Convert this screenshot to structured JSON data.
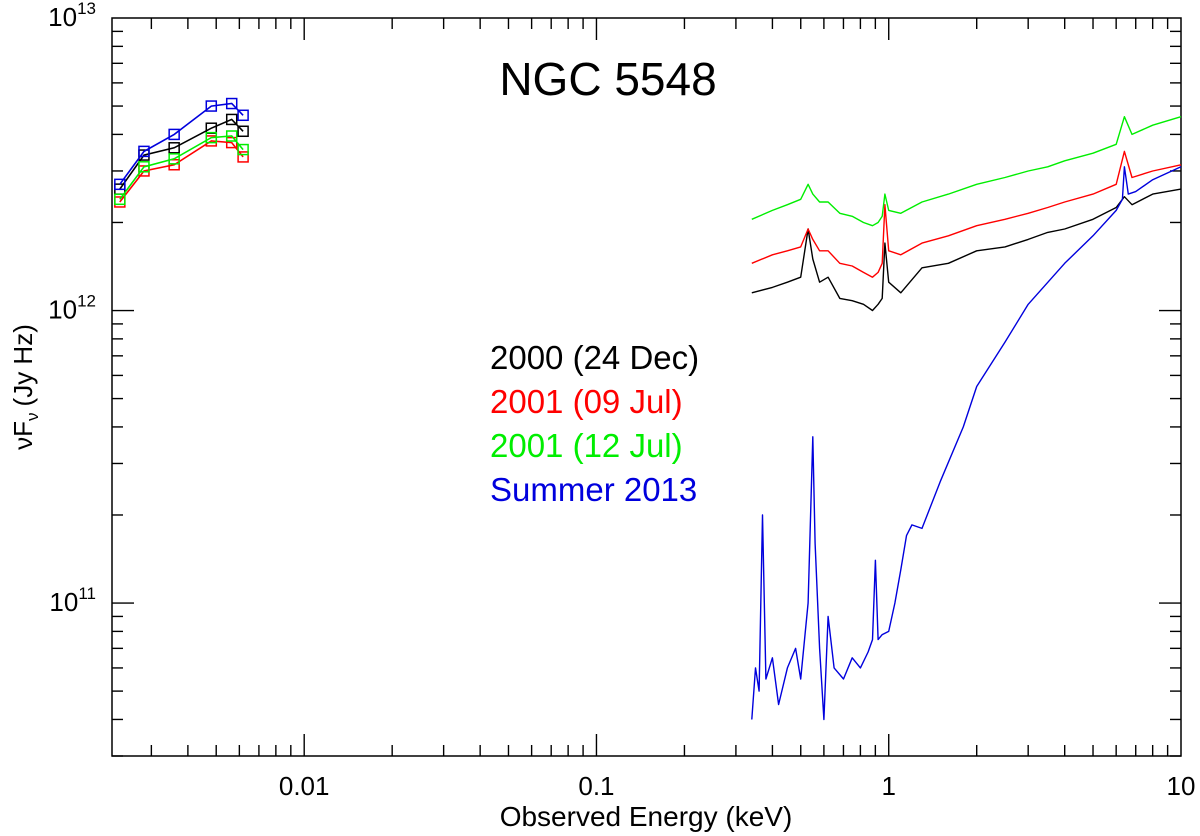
{
  "chart_data": {
    "type": "line",
    "title": "NGC 5548",
    "xlabel": "Observed Energy (keV)",
    "ylabel_main": "νF",
    "ylabel_sub": "ν",
    "ylabel_unit": "(Jy Hz)",
    "xscale": "log",
    "yscale": "log",
    "xlim": [
      0.0022,
      10
    ],
    "ylim": [
      30000000000.0,
      10000000000000.0
    ],
    "x_ticks": [
      {
        "value": 0.01,
        "label": "0.01"
      },
      {
        "value": 0.1,
        "label": "0.1"
      },
      {
        "value": 1,
        "label": "1"
      },
      {
        "value": 10,
        "label": "10"
      }
    ],
    "y_ticks": [
      {
        "value": 100000000000.0,
        "base": "10",
        "exp": "11"
      },
      {
        "value": 1000000000000.0,
        "base": "10",
        "exp": "12"
      },
      {
        "value": 10000000000000.0,
        "base": "10",
        "exp": "13"
      }
    ],
    "legend_position": "center",
    "series": [
      {
        "name": "2000 (24 Dec)",
        "color": "#000000",
        "uv_x": [
          0.00234,
          0.00283,
          0.00359,
          0.00481,
          0.00565,
          0.00618
        ],
        "uv_y": [
          2600000000000.0,
          3400000000000.0,
          3600000000000.0,
          4200000000000.0,
          4500000000000.0,
          4100000000000.0
        ],
        "xray_x": [
          0.34,
          0.4,
          0.45,
          0.5,
          0.53,
          0.55,
          0.58,
          0.62,
          0.68,
          0.75,
          0.82,
          0.88,
          0.92,
          0.95,
          0.97,
          1.0,
          1.1,
          1.3,
          1.6,
          2.0,
          2.5,
          3.0,
          3.5,
          4.0,
          5.0,
          6.0,
          6.4,
          6.8,
          8.0,
          10.0
        ],
        "xray_y": [
          1150000000000.0,
          1200000000000.0,
          1250000000000.0,
          1300000000000.0,
          1900000000000.0,
          1500000000000.0,
          1250000000000.0,
          1300000000000.0,
          1100000000000.0,
          1080000000000.0,
          1050000000000.0,
          1000000000000.0,
          1050000000000.0,
          1100000000000.0,
          1700000000000.0,
          1250000000000.0,
          1150000000000.0,
          1400000000000.0,
          1450000000000.0,
          1600000000000.0,
          1650000000000.0,
          1750000000000.0,
          1850000000000.0,
          1900000000000.0,
          2050000000000.0,
          2250000000000.0,
          2450000000000.0,
          2300000000000.0,
          2500000000000.0,
          2600000000000.0
        ]
      },
      {
        "name": "2001 (09 Jul)",
        "color": "#ff0000",
        "uv_x": [
          0.00234,
          0.00283,
          0.00359,
          0.00481,
          0.00565,
          0.00618
        ],
        "uv_y": [
          2350000000000.0,
          3000000000000.0,
          3150000000000.0,
          3800000000000.0,
          3750000000000.0,
          3350000000000.0
        ],
        "xray_x": [
          0.34,
          0.4,
          0.45,
          0.5,
          0.53,
          0.55,
          0.58,
          0.62,
          0.68,
          0.75,
          0.82,
          0.88,
          0.92,
          0.95,
          0.97,
          1.0,
          1.1,
          1.3,
          1.6,
          2.0,
          2.5,
          3.0,
          3.5,
          4.0,
          5.0,
          6.0,
          6.4,
          6.8,
          8.0,
          10.0
        ],
        "xray_y": [
          1450000000000.0,
          1550000000000.0,
          1600000000000.0,
          1650000000000.0,
          1900000000000.0,
          1750000000000.0,
          1600000000000.0,
          1600000000000.0,
          1450000000000.0,
          1420000000000.0,
          1350000000000.0,
          1300000000000.0,
          1350000000000.0,
          1450000000000.0,
          2300000000000.0,
          1600000000000.0,
          1550000000000.0,
          1700000000000.0,
          1800000000000.0,
          1950000000000.0,
          2050000000000.0,
          2150000000000.0,
          2250000000000.0,
          2350000000000.0,
          2500000000000.0,
          2700000000000.0,
          3500000000000.0,
          2850000000000.0,
          3000000000000.0,
          3150000000000.0
        ]
      },
      {
        "name": "2001 (12 Jul)",
        "color": "#00ee00",
        "uv_x": [
          0.00234,
          0.00283,
          0.00359,
          0.00481,
          0.00565,
          0.00618
        ],
        "uv_y": [
          2400000000000.0,
          3100000000000.0,
          3300000000000.0,
          3900000000000.0,
          3950000000000.0,
          3550000000000.0
        ],
        "xray_x": [
          0.34,
          0.4,
          0.45,
          0.5,
          0.53,
          0.55,
          0.58,
          0.62,
          0.68,
          0.75,
          0.82,
          0.88,
          0.92,
          0.95,
          0.97,
          1.0,
          1.1,
          1.3,
          1.6,
          2.0,
          2.5,
          3.0,
          3.5,
          4.0,
          5.0,
          6.0,
          6.4,
          6.8,
          8.0,
          10.0
        ],
        "xray_y": [
          2050000000000.0,
          2200000000000.0,
          2300000000000.0,
          2400000000000.0,
          2700000000000.0,
          2500000000000.0,
          2350000000000.0,
          2350000000000.0,
          2150000000000.0,
          2100000000000.0,
          2000000000000.0,
          1950000000000.0,
          2000000000000.0,
          2100000000000.0,
          2500000000000.0,
          2200000000000.0,
          2150000000000.0,
          2350000000000.0,
          2500000000000.0,
          2700000000000.0,
          2850000000000.0,
          3000000000000.0,
          3100000000000.0,
          3250000000000.0,
          3450000000000.0,
          3700000000000.0,
          4600000000000.0,
          4000000000000.0,
          4300000000000.0,
          4600000000000.0
        ]
      },
      {
        "name": "Summer 2013",
        "color": "#0000dd",
        "uv_x": [
          0.00234,
          0.00283,
          0.00359,
          0.00481,
          0.00565,
          0.00618
        ],
        "uv_y": [
          2700000000000.0,
          3500000000000.0,
          4000000000000.0,
          5000000000000.0,
          5100000000000.0,
          4650000000000.0
        ],
        "xray_x": [
          0.34,
          0.35,
          0.36,
          0.37,
          0.38,
          0.4,
          0.42,
          0.45,
          0.48,
          0.5,
          0.53,
          0.55,
          0.56,
          0.58,
          0.6,
          0.62,
          0.65,
          0.7,
          0.75,
          0.8,
          0.85,
          0.88,
          0.9,
          0.92,
          0.95,
          1.0,
          1.05,
          1.1,
          1.15,
          1.2,
          1.3,
          1.5,
          1.8,
          2.0,
          2.5,
          3.0,
          4.0,
          5.0,
          6.0,
          6.3,
          6.4,
          6.6,
          7.0,
          8.0,
          10.0
        ],
        "xray_y": [
          40000000000.0,
          60000000000.0,
          50000000000.0,
          200000000000.0,
          55000000000.0,
          65000000000.0,
          45000000000.0,
          60000000000.0,
          70000000000.0,
          55000000000.0,
          100000000000.0,
          370000000000.0,
          160000000000.0,
          70000000000.0,
          40000000000.0,
          90000000000.0,
          60000000000.0,
          55000000000.0,
          65000000000.0,
          60000000000.0,
          68000000000.0,
          75000000000.0,
          140000000000.0,
          75000000000.0,
          78000000000.0,
          80000000000.0,
          100000000000.0,
          130000000000.0,
          170000000000.0,
          185000000000.0,
          180000000000.0,
          260000000000.0,
          400000000000.0,
          550000000000.0,
          780000000000.0,
          1050000000000.0,
          1450000000000.0,
          1800000000000.0,
          2200000000000.0,
          2400000000000.0,
          3100000000000.0,
          2500000000000.0,
          2550000000000.0,
          2800000000000.0,
          3100000000000.0
        ]
      }
    ]
  }
}
